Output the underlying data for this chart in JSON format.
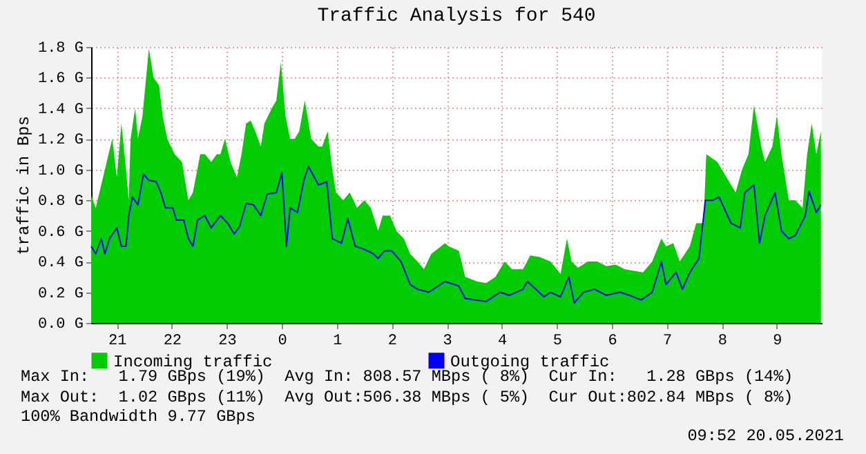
{
  "chart_data": {
    "type": "area",
    "title": "Traffic Analysis for 540",
    "ylabel": "traffic in Bps",
    "xlim": [
      "2021-05-19T20:32",
      "2021-05-20T09:49"
    ],
    "xticks": [
      {
        "value": "2021-05-19T21:00",
        "label": "21"
      },
      {
        "value": "2021-05-19T22:00",
        "label": "22"
      },
      {
        "value": "2021-05-19T23:00",
        "label": "23"
      },
      {
        "value": "2021-05-20T00:00",
        "label": "0"
      },
      {
        "value": "2021-05-20T01:00",
        "label": "1"
      },
      {
        "value": "2021-05-20T02:00",
        "label": "2"
      },
      {
        "value": "2021-05-20T03:00",
        "label": "3"
      },
      {
        "value": "2021-05-20T04:00",
        "label": "4"
      },
      {
        "value": "2021-05-20T05:00",
        "label": "5"
      },
      {
        "value": "2021-05-20T06:00",
        "label": "6"
      },
      {
        "value": "2021-05-20T07:00",
        "label": "7"
      },
      {
        "value": "2021-05-20T08:00",
        "label": "8"
      },
      {
        "value": "2021-05-20T09:00",
        "label": "9"
      }
    ],
    "ylim": [
      0,
      1.8
    ],
    "yticks": [
      {
        "value": 0,
        "label": "0.0 G"
      },
      {
        "value": 0.2,
        "label": "0.2 G"
      },
      {
        "value": 0.4,
        "label": "0.4 G"
      },
      {
        "value": 0.6,
        "label": "0.6 G"
      },
      {
        "value": 0.8,
        "label": "0.8 G"
      },
      {
        "value": 1.0,
        "label": "1.0 G"
      },
      {
        "value": 1.2,
        "label": "1.2 G"
      },
      {
        "value": 1.4,
        "label": "1.4 G"
      },
      {
        "value": 1.6,
        "label": "1.6 G"
      },
      {
        "value": 1.8,
        "label": "1.8 G"
      }
    ],
    "grid": true,
    "legend": "bottom left",
    "series": [
      {
        "name": "Incoming traffic",
        "color": "#00cc00",
        "x": [
          "2021-05-19T20:32",
          "2021-05-19T20:37",
          "2021-05-19T20:55",
          "2021-05-19T21:00",
          "2021-05-19T21:05",
          "2021-05-19T21:10",
          "2021-05-19T21:13",
          "2021-05-19T21:15",
          "2021-05-19T21:20",
          "2021-05-19T21:23",
          "2021-05-19T21:28",
          "2021-05-19T21:35",
          "2021-05-19T21:40",
          "2021-05-19T21:46",
          "2021-05-19T21:50",
          "2021-05-19T21:55",
          "2021-05-19T22:03",
          "2021-05-19T22:11",
          "2021-05-19T22:18",
          "2021-05-19T22:23",
          "2021-05-19T22:31",
          "2021-05-19T22:36",
          "2021-05-19T22:43",
          "2021-05-19T22:49",
          "2021-05-19T22:53",
          "2021-05-19T22:58",
          "2021-05-19T23:04",
          "2021-05-19T23:11",
          "2021-05-19T23:16",
          "2021-05-19T23:21",
          "2021-05-19T23:26",
          "2021-05-19T23:31",
          "2021-05-19T23:37",
          "2021-05-19T23:41",
          "2021-05-19T23:49",
          "2021-05-19T23:54",
          "2021-05-19T23:59",
          "2021-05-20T00:04",
          "2021-05-20T00:09",
          "2021-05-20T00:14",
          "2021-05-20T00:19",
          "2021-05-20T00:25",
          "2021-05-20T00:32",
          "2021-05-20T00:40",
          "2021-05-20T00:44",
          "2021-05-20T00:50",
          "2021-05-20T00:55",
          "2021-05-20T00:59",
          "2021-05-20T01:07",
          "2021-05-20T01:14",
          "2021-05-20T01:22",
          "2021-05-20T01:30",
          "2021-05-20T01:37",
          "2021-05-20T01:45",
          "2021-05-20T01:50",
          "2021-05-20T01:58",
          "2021-05-20T02:05",
          "2021-05-20T02:13",
          "2021-05-20T02:20",
          "2021-05-20T02:28",
          "2021-05-20T02:35",
          "2021-05-20T02:43",
          "2021-05-20T02:58",
          "2021-05-20T03:02",
          "2021-05-20T03:13",
          "2021-05-20T03:20",
          "2021-05-20T03:33",
          "2021-05-20T03:43",
          "2021-05-20T03:53",
          "2021-05-20T04:03",
          "2021-05-20T04:11",
          "2021-05-20T04:23",
          "2021-05-20T04:31",
          "2021-05-20T04:41",
          "2021-05-20T04:53",
          "2021-05-20T05:04",
          "2021-05-20T05:11",
          "2021-05-20T05:16",
          "2021-05-20T05:23",
          "2021-05-20T05:34",
          "2021-05-20T05:44",
          "2021-05-20T05:54",
          "2021-05-20T06:04",
          "2021-05-20T06:14",
          "2021-05-20T06:24",
          "2021-05-20T06:34",
          "2021-05-20T06:44",
          "2021-05-20T06:54",
          "2021-05-20T06:59",
          "2021-05-20T07:07",
          "2021-05-20T07:14",
          "2021-05-20T07:25",
          "2021-05-20T07:32",
          "2021-05-20T07:40",
          "2021-05-20T07:43",
          "2021-05-20T07:55",
          "2021-05-20T08:05",
          "2021-05-20T08:15",
          "2021-05-20T08:22",
          "2021-05-20T08:29",
          "2021-05-20T08:35",
          "2021-05-20T08:43",
          "2021-05-20T08:47",
          "2021-05-20T08:55",
          "2021-05-20T09:00",
          "2021-05-20T09:05",
          "2021-05-20T09:13",
          "2021-05-20T09:20",
          "2021-05-20T09:28",
          "2021-05-20T09:33",
          "2021-05-20T09:38",
          "2021-05-20T09:43",
          "2021-05-20T09:48"
        ],
        "values": [
          0.83,
          0.75,
          1.2,
          0.95,
          1.3,
          1.0,
          0.8,
          1.2,
          1.4,
          1.2,
          1.35,
          1.79,
          1.6,
          1.55,
          1.35,
          1.2,
          1.1,
          1.05,
          0.8,
          0.85,
          1.1,
          1.1,
          1.05,
          1.1,
          1.1,
          1.2,
          1.05,
          0.95,
          1.1,
          1.3,
          1.32,
          1.25,
          1.15,
          1.3,
          1.4,
          1.45,
          1.7,
          1.35,
          1.2,
          1.2,
          1.25,
          1.45,
          1.2,
          1.15,
          1.15,
          1.25,
          1.0,
          0.85,
          0.8,
          0.85,
          0.75,
          0.8,
          0.75,
          0.6,
          0.7,
          0.7,
          0.6,
          0.55,
          0.45,
          0.4,
          0.35,
          0.45,
          0.52,
          0.5,
          0.47,
          0.3,
          0.27,
          0.26,
          0.3,
          0.4,
          0.35,
          0.35,
          0.44,
          0.43,
          0.4,
          0.32,
          0.55,
          0.4,
          0.36,
          0.4,
          0.4,
          0.37,
          0.38,
          0.35,
          0.34,
          0.33,
          0.4,
          0.55,
          0.5,
          0.52,
          0.4,
          0.5,
          0.65,
          0.65,
          1.1,
          1.05,
          0.95,
          0.85,
          1.0,
          1.1,
          1.42,
          1.15,
          1.05,
          1.15,
          1.35,
          1.1,
          0.8,
          0.8,
          0.75,
          1.1,
          1.3,
          1.1,
          1.25
        ]
      },
      {
        "name": "Outgoing traffic",
        "type": "line",
        "color": "#0000ff",
        "x": [
          "2021-05-19T20:32",
          "2021-05-19T20:37",
          "2021-05-19T20:43",
          "2021-05-19T20:47",
          "2021-05-19T20:52",
          "2021-05-19T21:00",
          "2021-05-19T21:05",
          "2021-05-19T21:10",
          "2021-05-19T21:13",
          "2021-05-19T21:17",
          "2021-05-19T21:23",
          "2021-05-19T21:29",
          "2021-05-19T21:35",
          "2021-05-19T21:43",
          "2021-05-19T21:48",
          "2021-05-19T21:53",
          "2021-05-19T22:01",
          "2021-05-19T22:05",
          "2021-05-19T22:13",
          "2021-05-19T22:18",
          "2021-05-19T22:23",
          "2021-05-19T22:28",
          "2021-05-19T22:36",
          "2021-05-19T22:43",
          "2021-05-19T22:53",
          "2021-05-19T23:01",
          "2021-05-19T23:08",
          "2021-05-19T23:14",
          "2021-05-19T23:21",
          "2021-05-19T23:29",
          "2021-05-19T23:37",
          "2021-05-19T23:44",
          "2021-05-19T23:54",
          "2021-05-20T00:00",
          "2021-05-20T00:05",
          "2021-05-20T00:09",
          "2021-05-20T00:17",
          "2021-05-20T00:24",
          "2021-05-20T00:29",
          "2021-05-20T00:40",
          "2021-05-20T00:49",
          "2021-05-20T00:55",
          "2021-05-20T01:05",
          "2021-05-20T01:12",
          "2021-05-20T01:20",
          "2021-05-20T01:30",
          "2021-05-20T01:40",
          "2021-05-20T01:45",
          "2021-05-20T01:52",
          "2021-05-20T02:00",
          "2021-05-20T02:10",
          "2021-05-20T02:20",
          "2021-05-20T02:28",
          "2021-05-20T02:40",
          "2021-05-20T02:58",
          "2021-05-20T03:13",
          "2021-05-20T03:20",
          "2021-05-20T03:43",
          "2021-05-20T03:58",
          "2021-05-20T04:08",
          "2021-05-20T04:23",
          "2021-05-20T04:28",
          "2021-05-20T04:46",
          "2021-05-20T04:53",
          "2021-05-20T05:04",
          "2021-05-20T05:13",
          "2021-05-20T05:19",
          "2021-05-20T05:29",
          "2021-05-20T05:41",
          "2021-05-20T05:54",
          "2021-05-20T06:09",
          "2021-05-20T06:19",
          "2021-05-20T06:32",
          "2021-05-20T06:44",
          "2021-05-20T06:54",
          "2021-05-20T06:59",
          "2021-05-20T07:10",
          "2021-05-20T07:17",
          "2021-05-20T07:25",
          "2021-05-20T07:35",
          "2021-05-20T07:42",
          "2021-05-20T07:50",
          "2021-05-20T07:57",
          "2021-05-20T08:10",
          "2021-05-20T08:20",
          "2021-05-20T08:25",
          "2021-05-20T08:35",
          "2021-05-20T08:41",
          "2021-05-20T08:47",
          "2021-05-20T08:58",
          "2021-05-20T09:05",
          "2021-05-20T09:13",
          "2021-05-20T09:20",
          "2021-05-20T09:31",
          "2021-05-20T09:35",
          "2021-05-20T09:43",
          "2021-05-20T09:48"
        ],
        "values": [
          0.5,
          0.45,
          0.55,
          0.45,
          0.55,
          0.62,
          0.5,
          0.5,
          0.7,
          0.82,
          0.77,
          0.97,
          0.93,
          0.92,
          0.85,
          0.75,
          0.75,
          0.67,
          0.67,
          0.55,
          0.5,
          0.67,
          0.7,
          0.62,
          0.7,
          0.65,
          0.58,
          0.63,
          0.78,
          0.77,
          0.7,
          0.84,
          0.85,
          0.98,
          0.5,
          0.75,
          0.72,
          0.93,
          1.02,
          0.9,
          0.92,
          0.55,
          0.52,
          0.68,
          0.5,
          0.48,
          0.45,
          0.42,
          0.47,
          0.47,
          0.4,
          0.25,
          0.22,
          0.2,
          0.27,
          0.24,
          0.16,
          0.14,
          0.2,
          0.18,
          0.22,
          0.27,
          0.17,
          0.2,
          0.17,
          0.3,
          0.13,
          0.2,
          0.22,
          0.18,
          0.2,
          0.18,
          0.15,
          0.2,
          0.4,
          0.25,
          0.33,
          0.22,
          0.33,
          0.42,
          0.8,
          0.8,
          0.82,
          0.65,
          0.62,
          0.85,
          0.9,
          0.52,
          0.7,
          0.85,
          0.6,
          0.55,
          0.57,
          0.7,
          0.86,
          0.72,
          0.77
        ]
      }
    ],
    "annotations": [
      "Max In:   1.79 GBps (19%)  Avg In: 808.57 MBps ( 8%)  Cur In:   1.28 GBps (14%)",
      "Max Out:  1.02 GBps (11%)  Avg Out:506.38 MBps ( 5%)  Cur Out:802.84 MBps ( 8%)",
      "100% Bandwidth 9.77 GBps",
      "09:52 20.05.2021"
    ]
  }
}
